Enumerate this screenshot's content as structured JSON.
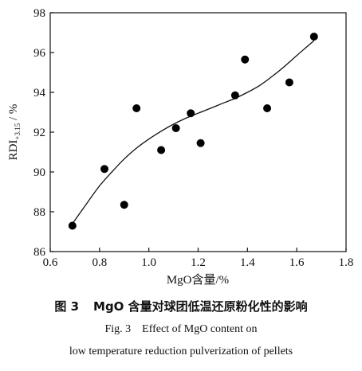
{
  "chart_data": {
    "type": "scatter",
    "xlabel": "MgO含量/%",
    "ylabel_main": "RDI",
    "ylabel_sub": "+3.15",
    "ylabel_unit": " / %",
    "xlim": [
      0.6,
      1.8
    ],
    "ylim": [
      86,
      98
    ],
    "xticks": [
      "0.6",
      "0.8",
      "1.0",
      "1.2",
      "1.4",
      "1.6",
      "1.8"
    ],
    "yticks": [
      "86",
      "88",
      "90",
      "92",
      "94",
      "96",
      "98"
    ],
    "grid": false,
    "points": [
      {
        "x": 0.69,
        "y": 87.3
      },
      {
        "x": 0.82,
        "y": 90.15
      },
      {
        "x": 0.9,
        "y": 88.35
      },
      {
        "x": 0.95,
        "y": 93.2
      },
      {
        "x": 1.05,
        "y": 91.1
      },
      {
        "x": 1.11,
        "y": 92.2
      },
      {
        "x": 1.17,
        "y": 92.95
      },
      {
        "x": 1.21,
        "y": 91.45
      },
      {
        "x": 1.35,
        "y": 93.85
      },
      {
        "x": 1.39,
        "y": 95.65
      },
      {
        "x": 1.48,
        "y": 93.2
      },
      {
        "x": 1.57,
        "y": 94.5
      },
      {
        "x": 1.67,
        "y": 96.8
      }
    ],
    "fit_curve": {
      "x": [
        0.69,
        0.75,
        0.8,
        0.85,
        0.9,
        0.95,
        1.0,
        1.05,
        1.1,
        1.15,
        1.2,
        1.25,
        1.3,
        1.35,
        1.4,
        1.45,
        1.5,
        1.55,
        1.6,
        1.67
      ],
      "y": [
        87.4,
        88.45,
        89.3,
        90.0,
        90.65,
        91.2,
        91.65,
        92.05,
        92.4,
        92.7,
        92.95,
        93.2,
        93.45,
        93.7,
        94.0,
        94.35,
        94.8,
        95.3,
        95.85,
        96.6
      ]
    }
  },
  "caption": {
    "cn_num": "图 3",
    "cn_text": "MgO 含量对球团低温还原粉化性的影响",
    "en_num": "Fig. 3",
    "en_line1": "Effect of MgO content on",
    "en_line2": "low temperature reduction pulverization of pellets"
  }
}
